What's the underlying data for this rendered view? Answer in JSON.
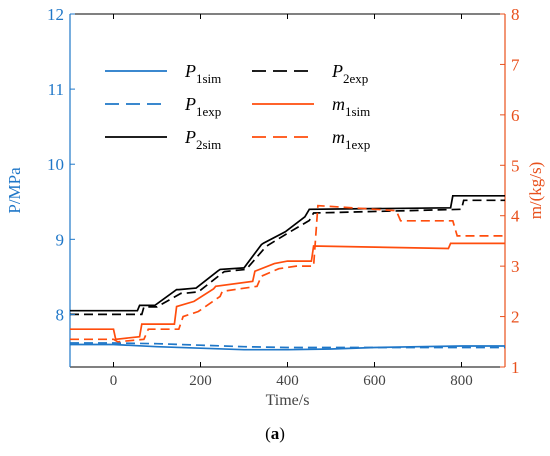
{
  "caption": {
    "prefix": "(",
    "letter": "a",
    "suffix": ")"
  },
  "chart_data": {
    "type": "line",
    "xlabel": "Time/s",
    "ylabel_left": "P/MPa",
    "ylabel_right": "m/(kg/s)",
    "xlim": [
      -100,
      900
    ],
    "ylim_left": [
      7.3,
      12
    ],
    "ylim_right": [
      1,
      8
    ],
    "x_ticks": [
      0,
      200,
      400,
      600,
      800
    ],
    "y_left_ticks": [
      8,
      9,
      10,
      11,
      12
    ],
    "y_right_ticks": [
      1,
      2,
      3,
      4,
      5,
      6,
      7,
      8
    ],
    "grid": false,
    "legend_position": "upper-left",
    "colors": {
      "left_axis": "#1f77c8",
      "right_axis": "#e8501c",
      "pressure2": "#000000",
      "pressure1": "#1f77c8",
      "massflow": "#ff4d0d"
    },
    "series": [
      {
        "name": "P1sim",
        "label_main": "P",
        "label_sub": "1sim",
        "axis": "left",
        "style": "solid",
        "color": "#1f77c8",
        "x": [
          -100,
          0,
          100,
          200,
          300,
          400,
          500,
          600,
          700,
          800,
          900
        ],
        "y": [
          7.6,
          7.6,
          7.57,
          7.55,
          7.53,
          7.53,
          7.54,
          7.56,
          7.57,
          7.58,
          7.58
        ]
      },
      {
        "name": "P1exp",
        "label_main": "P",
        "label_sub": "1exp",
        "axis": "left",
        "style": "dashed",
        "color": "#1f77c8",
        "x": [
          -100,
          0,
          100,
          200,
          300,
          400,
          500,
          600,
          700,
          800,
          900
        ],
        "y": [
          7.62,
          7.62,
          7.61,
          7.59,
          7.57,
          7.56,
          7.56,
          7.56,
          7.56,
          7.56,
          7.56
        ]
      },
      {
        "name": "P2sim",
        "label_main": "P",
        "label_sub": "2sim",
        "axis": "left",
        "style": "solid",
        "color": "#000000",
        "x": [
          -100,
          55,
          60,
          95,
          145,
          150,
          190,
          240,
          245,
          300,
          340,
          345,
          395,
          440,
          450,
          775,
          780,
          900
        ],
        "y": [
          8.05,
          8.05,
          8.12,
          8.12,
          8.33,
          8.33,
          8.35,
          8.58,
          8.6,
          8.62,
          8.93,
          8.95,
          9.1,
          9.3,
          9.4,
          9.42,
          9.58,
          9.58
        ]
      },
      {
        "name": "P2exp",
        "label_main": "P",
        "label_sub": "2exp",
        "axis": "left",
        "style": "dashed",
        "color": "#000000",
        "x": [
          -100,
          65,
          70,
          100,
          155,
          160,
          195,
          250,
          255,
          305,
          350,
          355,
          400,
          450,
          460,
          800,
          805,
          900
        ],
        "y": [
          8.0,
          8.0,
          8.1,
          8.1,
          8.28,
          8.28,
          8.3,
          8.55,
          8.57,
          8.6,
          8.9,
          8.92,
          9.08,
          9.25,
          9.35,
          9.4,
          9.52,
          9.52
        ]
      },
      {
        "name": "m1sim",
        "label_main": "m",
        "label_sub": "1sim",
        "axis": "right",
        "style": "solid",
        "color": "#ff4d0d",
        "x": [
          -100,
          0,
          5,
          60,
          65,
          140,
          145,
          185,
          230,
          235,
          320,
          325,
          370,
          400,
          455,
          460,
          770,
          775,
          900
        ],
        "y": [
          1.75,
          1.75,
          1.55,
          1.6,
          1.85,
          1.85,
          2.2,
          2.3,
          2.55,
          2.6,
          2.7,
          2.9,
          3.05,
          3.1,
          3.1,
          3.4,
          3.35,
          3.45,
          3.45
        ]
      },
      {
        "name": "m1exp",
        "label_main": "m",
        "label_sub": "1exp",
        "axis": "right",
        "style": "dashed",
        "color": "#ff4d0d",
        "x": [
          -100,
          0,
          10,
          70,
          80,
          150,
          160,
          195,
          245,
          250,
          330,
          340,
          380,
          420,
          460,
          470,
          650,
          660,
          780,
          790,
          900
        ],
        "y": [
          1.55,
          1.55,
          1.5,
          1.55,
          1.75,
          1.75,
          2.0,
          2.1,
          2.4,
          2.5,
          2.6,
          2.8,
          2.95,
          3.0,
          3.0,
          4.2,
          4.1,
          3.9,
          3.9,
          3.6,
          3.6
        ]
      }
    ]
  }
}
